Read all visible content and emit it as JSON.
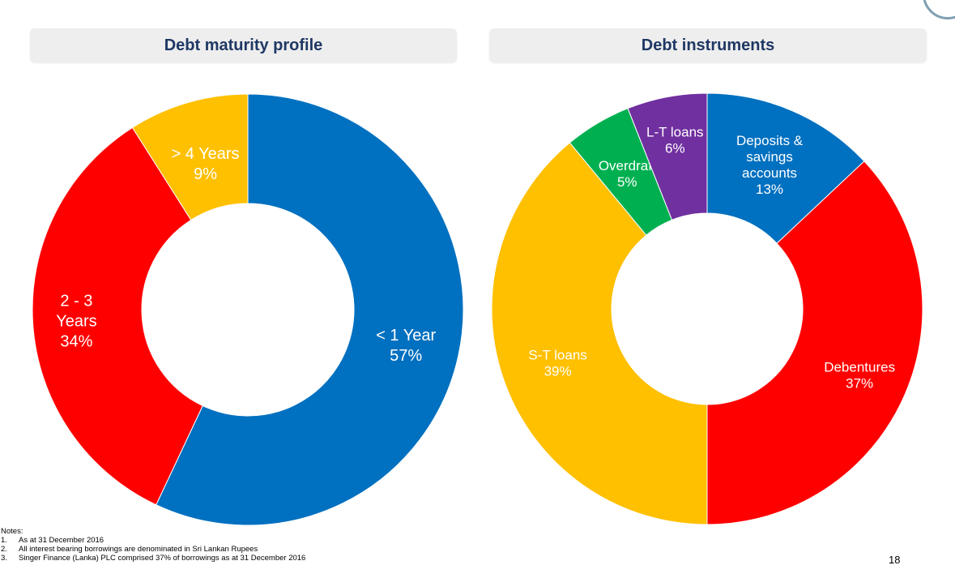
{
  "charts_titles": {
    "left": "Debt maturity profile",
    "right": "Debt instruments"
  },
  "chart_data": [
    {
      "type": "pie",
      "title": "Debt maturity profile",
      "donut": true,
      "slices": [
        {
          "lines": [
            "< 1 Year",
            "57%"
          ],
          "value": 57,
          "color": "#0070c0"
        },
        {
          "lines": [
            "2 - 3",
            "Years",
            "34%"
          ],
          "value": 34,
          "color": "#ff0000"
        },
        {
          "lines": [
            "> 4 Years",
            "9%"
          ],
          "value": 9,
          "color": "#ffc000"
        }
      ]
    },
    {
      "type": "pie",
      "title": "Debt instruments",
      "donut": true,
      "slices": [
        {
          "lines": [
            "Deposits &",
            "savings",
            "accounts",
            "13%"
          ],
          "value": 13,
          "color": "#0070c0"
        },
        {
          "lines": [
            "Debentures",
            "37%"
          ],
          "value": 37,
          "color": "#ff0000"
        },
        {
          "lines": [
            "S-T loans",
            "39%"
          ],
          "value": 39,
          "color": "#ffc000"
        },
        {
          "lines": [
            "Overdraft",
            "5%"
          ],
          "value": 5,
          "color": "#00b050"
        },
        {
          "lines": [
            "L-T loans",
            "6%"
          ],
          "value": 6,
          "color": "#7030a0"
        }
      ]
    }
  ],
  "notes": {
    "heading": "Notes:",
    "items": [
      {
        "num": "1.",
        "text": "As at 31 December 2016"
      },
      {
        "num": "2.",
        "text": "All interest bearing borrowings are denominated in Sri Lankan Rupees"
      },
      {
        "num": "3.",
        "text": "Singer Finance (Lanka) PLC comprised 37% of borrowings as at 31 December 2016"
      }
    ]
  },
  "page_number": "18"
}
